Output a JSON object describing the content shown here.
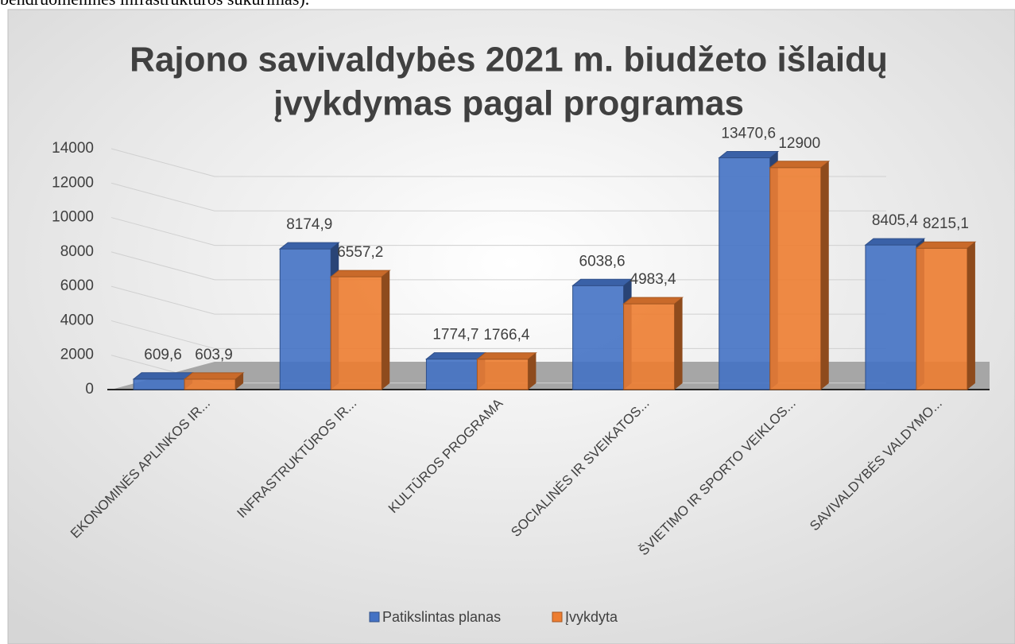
{
  "page_text": "bendruomeninės infrastruktūros sukūrimas).",
  "chart_data": {
    "type": "bar3d",
    "title": [
      "Rajono savivaldybės 2021 m. biudžeto išlaidų",
      "įvykdymas  pagal programas"
    ],
    "categories": [
      "EKONOMINĖS APLINKOS IR...",
      "INFRASTRUKTŪROS IR...",
      "KULTŪROS PROGRAMA",
      "SOCIALINĖS IR SVEIKATOS...",
      "ŠVIETIMO IR SPORTO VEIKLOS...",
      "SAVIVALDYBĖS VALDYMO..."
    ],
    "series": [
      {
        "name": "Patikslintas planas",
        "color": "#4472c4",
        "values": [
          609.6,
          8174.9,
          1774.7,
          6038.6,
          13470.6,
          8405.4
        ],
        "value_labels": [
          "609,6",
          "8174,9",
          "1774,7",
          "6038,6",
          "13470,6",
          "8405,4"
        ]
      },
      {
        "name": "Įvykdyta",
        "color": "#ed7d31",
        "values": [
          603.9,
          6557.2,
          1766.4,
          4983.4,
          12900,
          8215.1
        ],
        "value_labels": [
          "603,9",
          "6557,2",
          "1766,4",
          "4983,4",
          "12900",
          "8215,1"
        ]
      }
    ],
    "ylim": [
      0,
      14000
    ],
    "yticks": [
      0,
      2000,
      4000,
      6000,
      8000,
      10000,
      12000,
      14000
    ],
    "grid": true,
    "legend": "bottom"
  }
}
